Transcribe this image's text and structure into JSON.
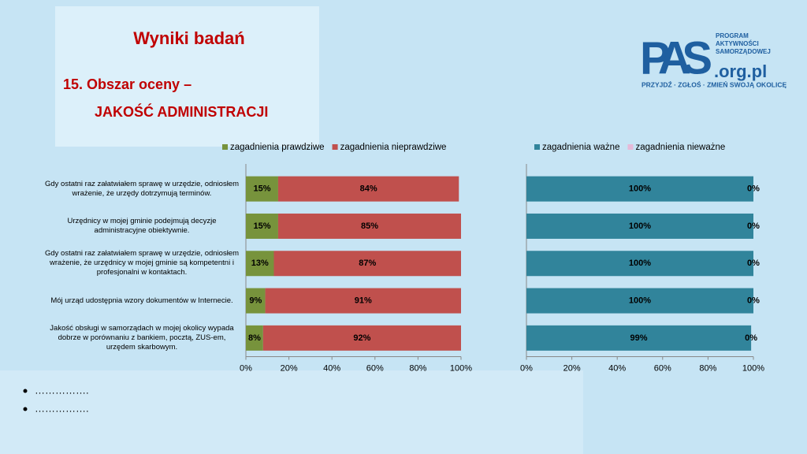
{
  "title": "Wyniki badań",
  "subtitle": [
    "15. Obszar oceny –",
    "JAKOŚĆ ADMINISTRACJI"
  ],
  "logo": {
    "main": "PAS",
    "domain": ".org.pl",
    "side": [
      "PROGRAM",
      "AKTYWNOŚCI",
      "SAMORZĄDOWEJ"
    ],
    "slogan": "PRZYJDŹ · ZGŁOŚ · ZMIEŃ SWOJĄ OKOLICĘ"
  },
  "bullets": [
    "…………….",
    "……………."
  ],
  "chart_data": [
    {
      "type": "bar",
      "orientation": "horizontal",
      "stacked": true,
      "categories": [
        "Gdy ostatni raz załatwiałem sprawę w urzędzie, odniosłem wrażenie, że urzędy dotrzymują terminów.",
        "Urzędnicy w mojej gminie podejmują decyzje administracyjne obiektywnie.",
        "Gdy ostatni raz załatwiałem sprawę w urzędzie, odniosłem wrażenie, że urzędnicy w mojej gminie są kompetentni i profesjonalni w kontaktach.",
        "Mój urząd udostępnia wzory dokumentów w Internecie.",
        "Jakość obsługi w samorządach w mojej okolicy wypada dobrze w porównaniu z bankiem, pocztą, ZUS-em, urzędem skarbowym."
      ],
      "series": [
        {
          "name": "zagadnienia prawdziwe",
          "color": "#77933c",
          "values": [
            15,
            15,
            13,
            9,
            8
          ],
          "value_labels": [
            "15%",
            "15%",
            "13%",
            "9%",
            "8%"
          ]
        },
        {
          "name": "zagadnienia nieprawdziwe",
          "color": "#c0504d",
          "values": [
            84,
            85,
            87,
            91,
            92
          ],
          "value_labels": [
            "84%",
            "85%",
            "87%",
            "91%",
            "92%"
          ]
        }
      ],
      "xlim": [
        0,
        100
      ],
      "xticks": [
        {
          "value": 0,
          "label": "0%"
        },
        {
          "value": 20,
          "label": "20%"
        },
        {
          "value": 40,
          "label": "40%"
        },
        {
          "value": 60,
          "label": "60%"
        },
        {
          "value": 80,
          "label": "80%"
        },
        {
          "value": 100,
          "label": "100%"
        }
      ],
      "legend": "top"
    },
    {
      "type": "bar",
      "orientation": "horizontal",
      "stacked": true,
      "series": [
        {
          "name": "zagadnienia ważne",
          "color": "#31849b",
          "values": [
            100,
            100,
            100,
            100,
            99
          ],
          "value_labels": [
            "100%",
            "100%",
            "100%",
            "100%",
            "99%"
          ]
        },
        {
          "name": "zagadnienia nieważne",
          "color": "#e6b9d8",
          "values": [
            0,
            0,
            0,
            0,
            0
          ],
          "value_labels": [
            "0%",
            "0%",
            "0%",
            "0%",
            "0%"
          ]
        }
      ],
      "xlim": [
        0,
        100
      ],
      "xticks": [
        {
          "value": 0,
          "label": "0%"
        },
        {
          "value": 20,
          "label": "20%"
        },
        {
          "value": 40,
          "label": "40%"
        },
        {
          "value": 60,
          "label": "60%"
        },
        {
          "value": 80,
          "label": "80%"
        },
        {
          "value": 100,
          "label": "100%"
        }
      ],
      "legend": "top"
    }
  ]
}
